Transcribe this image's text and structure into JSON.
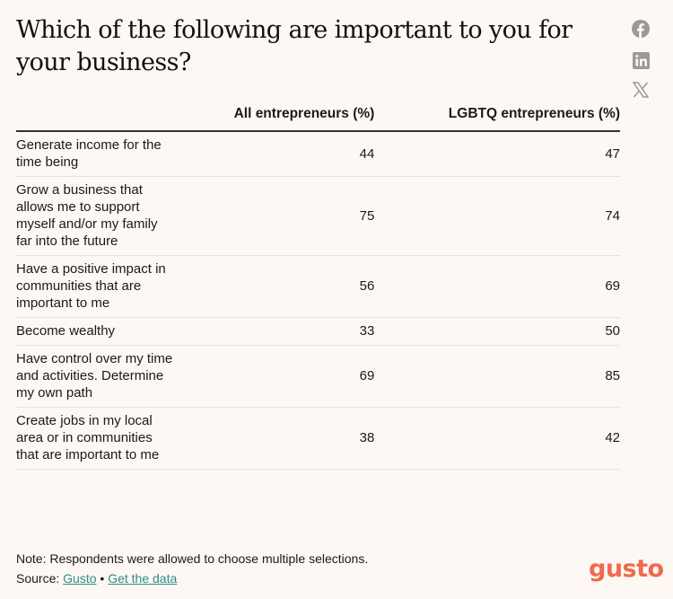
{
  "title": "Which of the following are important to you for your business?",
  "share_icons": [
    "facebook-icon",
    "linkedin-icon",
    "x-icon"
  ],
  "chart_data": {
    "type": "table",
    "columns": [
      "",
      "All entrepreneurs (%)",
      "LGBTQ entrepreneurs (%)"
    ],
    "rows": [
      {
        "label": "Generate income for the time being",
        "all": "44",
        "lgbtq": "47"
      },
      {
        "label": "Grow a business that allows me to support myself and/or my family far into the future",
        "all": "75",
        "lgbtq": "74"
      },
      {
        "label": "Have a positive impact in communities that are important to me",
        "all": "56",
        "lgbtq": "69"
      },
      {
        "label": "Become wealthy",
        "all": "33",
        "lgbtq": "50"
      },
      {
        "label": "Have control over my time and activities. Determine my own path",
        "all": "69",
        "lgbtq": "85"
      },
      {
        "label": "Create jobs in my local area or in communities that are important to me",
        "all": "38",
        "lgbtq": "42"
      }
    ]
  },
  "footer": {
    "note": "Note: Respondents were allowed to choose multiple selections.",
    "source_prefix": "Source:",
    "source_link": "Gusto",
    "separator": "•",
    "data_link": "Get the data",
    "logo": "gusto"
  },
  "colors": {
    "background": "#fdf8f3",
    "link": "#2f8a8a",
    "logo": "#f06a4e"
  }
}
